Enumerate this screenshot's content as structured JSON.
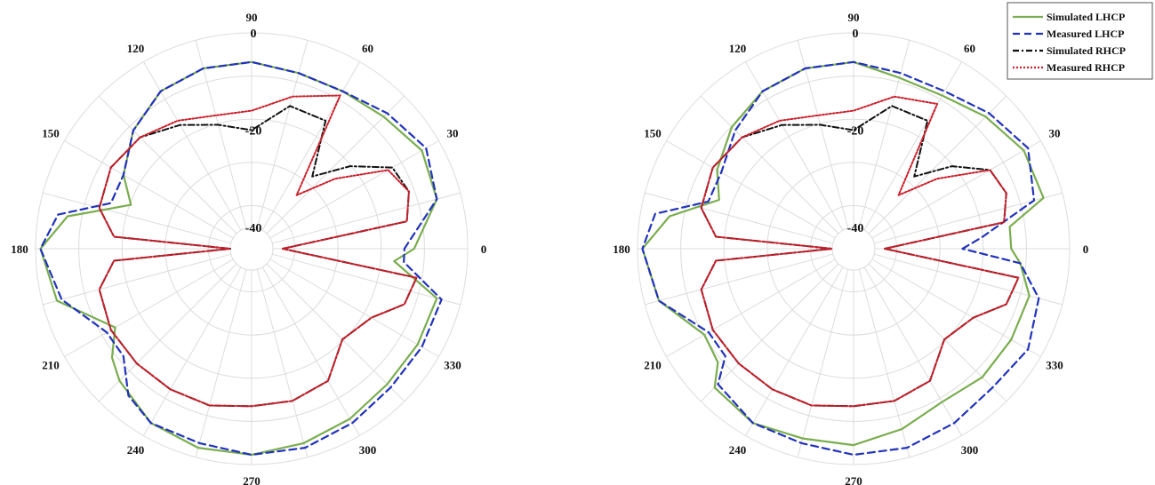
{
  "chart_data": [
    {
      "type": "polar-line",
      "title": "",
      "angle_ticks": [
        "0",
        "30",
        "60",
        "90",
        "120",
        "150",
        "180",
        "210",
        "240",
        "270",
        "300",
        "330"
      ],
      "radial_ticks": [
        "0",
        "-20",
        "-40"
      ],
      "rlim": [
        -40,
        0
      ],
      "grid": true,
      "series": [
        {
          "name": "Simulated LHCP",
          "theta": [
            0,
            15,
            30,
            45,
            60,
            75,
            90,
            105,
            120,
            135,
            150,
            160,
            170,
            180,
            195,
            210,
            218,
            225,
            240,
            255,
            270,
            285,
            300,
            315,
            330,
            345,
            355
          ],
          "r": [
            -11,
            -5,
            -4,
            -6,
            -7,
            -7,
            -6,
            -6,
            -7,
            -10,
            -14,
            -18,
            -6,
            -1,
            -3,
            -12,
            -8,
            -6,
            -3,
            -2,
            -2,
            -3,
            -4,
            -5,
            -5,
            -5,
            -15
          ]
        },
        {
          "name": "Measured LHCP",
          "theta": [
            0,
            15,
            30,
            45,
            60,
            75,
            90,
            105,
            120,
            135,
            150,
            162,
            170,
            180,
            195,
            210,
            220,
            230,
            240,
            255,
            270,
            285,
            300,
            315,
            330,
            345,
            355
          ],
          "r": [
            -13,
            -5,
            -3,
            -5,
            -7,
            -7,
            -6,
            -6,
            -7,
            -10,
            -14,
            -14,
            -4,
            -1,
            -4,
            -10,
            -10,
            -5,
            -3,
            -3,
            -2,
            -2,
            -3,
            -4,
            -4,
            -4,
            -13
          ]
        },
        {
          "name": "Simulated RHCP",
          "theta": [
            0,
            10,
            20,
            30,
            40,
            50,
            60,
            75,
            90,
            105,
            120,
            135,
            150,
            165,
            175,
            180,
            185,
            195,
            210,
            225,
            240,
            255,
            270,
            285,
            300,
            315,
            330,
            340,
            350
          ],
          "r": [
            -38,
            -12,
            -10,
            -11,
            -18,
            -25,
            -14,
            -14,
            -20,
            -18,
            -15,
            -12,
            -11,
            -12,
            -16,
            -40,
            -16,
            -12,
            -11,
            -11,
            -11,
            -11,
            -12,
            -12,
            -13,
            -18,
            -16,
            -11,
            -10
          ]
        },
        {
          "name": "Measured RHCP",
          "theta": [
            0,
            10,
            20,
            30,
            40,
            50,
            60,
            75,
            90,
            105,
            120,
            135,
            150,
            165,
            175,
            180,
            185,
            195,
            210,
            225,
            240,
            255,
            270,
            285,
            300,
            315,
            330,
            340,
            350
          ],
          "r": [
            -38,
            -12,
            -10,
            -12,
            -22,
            -30,
            -8,
            -12,
            -16,
            -16,
            -14,
            -12,
            -11,
            -12,
            -16,
            -40,
            -16,
            -12,
            -11,
            -11,
            -11,
            -11,
            -12,
            -12,
            -13,
            -18,
            -16,
            -11,
            -10
          ]
        }
      ]
    },
    {
      "type": "polar-line",
      "title": "",
      "angle_ticks": [
        "0",
        "30",
        "60",
        "90",
        "120",
        "150",
        "180",
        "210",
        "240",
        "270",
        "300",
        "330"
      ],
      "radial_ticks": [
        "0",
        "-20",
        "-40"
      ],
      "rlim": [
        -40,
        0
      ],
      "grid": true,
      "series": [
        {
          "name": "Simulated LHCP",
          "theta": [
            0,
            8,
            15,
            30,
            45,
            60,
            75,
            90,
            105,
            120,
            135,
            150,
            160,
            170,
            180,
            195,
            210,
            220,
            225,
            240,
            255,
            270,
            285,
            300,
            315,
            330,
            345,
            355
          ],
          "r": [
            -12,
            -12,
            -4,
            -4,
            -6,
            -8,
            -8,
            -6,
            -6,
            -7,
            -9,
            -12,
            -15,
            -6,
            -1,
            -3,
            -9,
            -8,
            -4,
            -3,
            -4,
            -4,
            -6,
            -8,
            -7,
            -7,
            -7,
            -10
          ]
        },
        {
          "name": "Measured LHCP",
          "theta": [
            0,
            5,
            15,
            30,
            45,
            60,
            75,
            90,
            105,
            120,
            135,
            150,
            162,
            170,
            180,
            195,
            210,
            220,
            225,
            240,
            255,
            270,
            285,
            300,
            315,
            330,
            345,
            355
          ],
          "r": [
            -22,
            -18,
            -6,
            -3,
            -5,
            -7,
            -7,
            -6,
            -6,
            -7,
            -10,
            -13,
            -13,
            -3,
            -1,
            -3,
            -10,
            -10,
            -5,
            -3,
            -3,
            -2,
            -2,
            -3,
            -4,
            -3,
            -5,
            -10
          ]
        },
        {
          "name": "Simulated RHCP",
          "theta": [
            0,
            10,
            20,
            30,
            40,
            50,
            60,
            75,
            90,
            105,
            120,
            135,
            150,
            165,
            175,
            180,
            185,
            195,
            210,
            225,
            240,
            255,
            270,
            285,
            300,
            315,
            330,
            340,
            350
          ],
          "r": [
            -38,
            -13,
            -11,
            -12,
            -18,
            -25,
            -14,
            -14,
            -20,
            -18,
            -15,
            -12,
            -11,
            -12,
            -16,
            -40,
            -16,
            -12,
            -11,
            -11,
            -11,
            -11,
            -12,
            -12,
            -13,
            -18,
            -16,
            -11,
            -10
          ]
        },
        {
          "name": "Measured RHCP",
          "theta": [
            0,
            10,
            20,
            30,
            40,
            50,
            60,
            75,
            90,
            105,
            120,
            135,
            150,
            165,
            175,
            180,
            185,
            195,
            210,
            225,
            240,
            255,
            270,
            285,
            300,
            315,
            330,
            340,
            350
          ],
          "r": [
            -38,
            -13,
            -11,
            -12,
            -22,
            -30,
            -10,
            -12,
            -16,
            -16,
            -14,
            -12,
            -11,
            -12,
            -16,
            -40,
            -16,
            -12,
            -11,
            -11,
            -11,
            -11,
            -12,
            -12,
            -13,
            -18,
            -16,
            -11,
            -10
          ]
        }
      ]
    }
  ],
  "legend": {
    "placement": "top-right",
    "entries": [
      "Simulated LHCP",
      "Measured LHCP",
      "Simulated RHCP",
      "Measured RHCP"
    ]
  },
  "colors": {
    "Simulated LHCP": "#7aad4f",
    "Measured LHCP": "#2233bb",
    "Simulated RHCP": "#111111",
    "Measured RHCP": "#cc1f2b",
    "grid": "#dcdcdc"
  }
}
